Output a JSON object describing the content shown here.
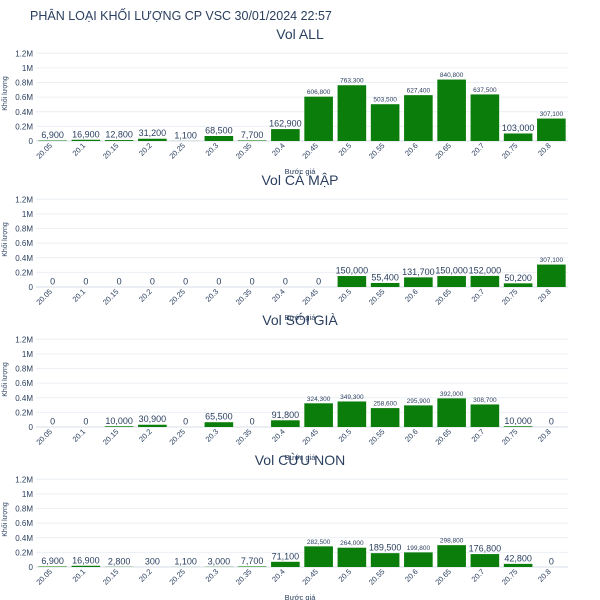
{
  "page_title": "PHÂN LOẠI KHỐI LƯỢNG CP VSC 30/01/2024 22:57",
  "colors": {
    "bar": "#0a7d0a",
    "grid": "#eceff4",
    "text": "#2a3f5f"
  },
  "chart_data": [
    {
      "type": "bar",
      "title": "Vol ALL",
      "xlabel": "Bước giá",
      "ylabel": "Khối lượng",
      "ylim": [
        0,
        1300000
      ],
      "yticks": [
        0,
        200000,
        400000,
        600000,
        800000,
        1000000,
        1200000
      ],
      "ytick_labels": [
        "0",
        "0.2M",
        "0.4M",
        "0.6M",
        "0.8M",
        "1M",
        "1.2M"
      ],
      "categories": [
        "20.05",
        "20.1",
        "20.15",
        "20.2",
        "20.25",
        "20.3",
        "20.35",
        "20.4",
        "20.45",
        "20.5",
        "20.55",
        "20.6",
        "20.65",
        "20.7",
        "20.75",
        "20.8"
      ],
      "values": [
        6900,
        16900,
        12800,
        31200,
        1100,
        68500,
        7700,
        162900,
        606800,
        763300,
        503500,
        627400,
        840800,
        637500,
        103000,
        307100
      ],
      "labels": [
        "6,900",
        "16,900",
        "12,800",
        "31,200",
        "1,100",
        "68,500",
        "7,700",
        "162,900",
        "606,800",
        "763,300",
        "503,500",
        "627,400",
        "840,800",
        "637,500",
        "103,000",
        "307,100"
      ]
    },
    {
      "type": "bar",
      "title": "Vol CÁ MẬP",
      "xlabel": "Bước giá",
      "ylabel": "Khối lượng",
      "ylim": [
        0,
        1300000
      ],
      "yticks": [
        0,
        200000,
        400000,
        600000,
        800000,
        1000000,
        1200000
      ],
      "ytick_labels": [
        "0",
        "0.2M",
        "0.4M",
        "0.6M",
        "0.8M",
        "1M",
        "1.2M"
      ],
      "categories": [
        "20.05",
        "20.1",
        "20.15",
        "20.2",
        "20.25",
        "20.3",
        "20.35",
        "20.4",
        "20.45",
        "20.5",
        "20.55",
        "20.6",
        "20.65",
        "20.7",
        "20.75",
        "20.8"
      ],
      "values": [
        0,
        0,
        0,
        0,
        0,
        0,
        0,
        0,
        0,
        150000,
        55400,
        131700,
        150000,
        152000,
        50200,
        307100
      ],
      "labels": [
        "0",
        "0",
        "0",
        "0",
        "0",
        "0",
        "0",
        "0",
        "0",
        "150,000",
        "55,400",
        "131,700",
        "150,000",
        "152,000",
        "50,200",
        "307,100"
      ]
    },
    {
      "type": "bar",
      "title": "Vol SÓI GIÀ",
      "xlabel": "Bước giá",
      "ylabel": "Khối lượng",
      "ylim": [
        0,
        1300000
      ],
      "yticks": [
        0,
        200000,
        400000,
        600000,
        800000,
        1000000,
        1200000
      ],
      "ytick_labels": [
        "0",
        "0.2M",
        "0.4M",
        "0.6M",
        "0.8M",
        "1M",
        "1.2M"
      ],
      "categories": [
        "20.05",
        "20.1",
        "20.15",
        "20.2",
        "20.25",
        "20.3",
        "20.35",
        "20.4",
        "20.45",
        "20.5",
        "20.55",
        "20.6",
        "20.65",
        "20.7",
        "20.75",
        "20.8"
      ],
      "values": [
        0,
        0,
        10000,
        30900,
        0,
        65500,
        0,
        91800,
        324300,
        349300,
        258600,
        295900,
        392000,
        308700,
        10000,
        0
      ],
      "labels": [
        "0",
        "0",
        "10,000",
        "30,900",
        "0",
        "65,500",
        "0",
        "91,800",
        "324,300",
        "349,300",
        "258,600",
        "295,900",
        "392,000",
        "308,700",
        "10,000",
        "0"
      ]
    },
    {
      "type": "bar",
      "title": "Vol CỪU NON",
      "xlabel": "Bước giá",
      "ylabel": "Khối lượng",
      "ylim": [
        0,
        1300000
      ],
      "yticks": [
        0,
        200000,
        400000,
        600000,
        800000,
        1000000,
        1200000
      ],
      "ytick_labels": [
        "0",
        "0.2M",
        "0.4M",
        "0.6M",
        "0.8M",
        "1M",
        "1.2M"
      ],
      "categories": [
        "20.05",
        "20.1",
        "20.15",
        "20.2",
        "20.25",
        "20.3",
        "20.35",
        "20.4",
        "20.45",
        "20.5",
        "20.55",
        "20.6",
        "20.65",
        "20.7",
        "20.75",
        "20.8"
      ],
      "values": [
        6900,
        16900,
        2800,
        300,
        1100,
        3000,
        7700,
        71100,
        282500,
        264000,
        189500,
        199800,
        298800,
        176800,
        42800,
        0
      ],
      "labels": [
        "6,900",
        "16,900",
        "2,800",
        "300",
        "1,100",
        "3,000",
        "7,700",
        "71,100",
        "282,500",
        "264,000",
        "189,500",
        "199,800",
        "298,800",
        "176,800",
        "42,800",
        "0"
      ]
    }
  ]
}
